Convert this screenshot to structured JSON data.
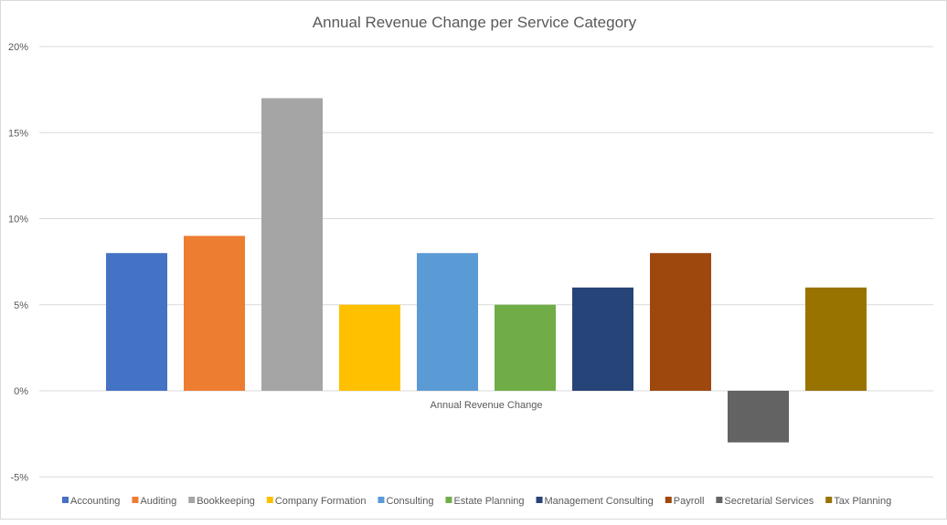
{
  "chart_data": {
    "type": "bar",
    "title": "Annual Revenue Change per Service Category",
    "xlabel": "Annual Revenue Change",
    "ylabel": "",
    "ylim": [
      -0.05,
      0.2
    ],
    "yticks": [
      -0.05,
      0,
      0.05,
      0.1,
      0.15,
      0.2
    ],
    "ytick_labels": [
      "-5%",
      "0%",
      "5%",
      "10%",
      "15%",
      "20%"
    ],
    "grid": true,
    "legend_position": "bottom",
    "series": [
      {
        "name": "Accounting",
        "value": 0.08,
        "color": "#4472C4"
      },
      {
        "name": "Auditing",
        "value": 0.09,
        "color": "#ED7D31"
      },
      {
        "name": "Bookkeeping",
        "value": 0.17,
        "color": "#A5A5A5"
      },
      {
        "name": "Company Formation",
        "value": 0.05,
        "color": "#FFC000"
      },
      {
        "name": "Consulting",
        "value": 0.08,
        "color": "#5B9BD5"
      },
      {
        "name": "Estate Planning",
        "value": 0.05,
        "color": "#70AD47"
      },
      {
        "name": "Management Consulting",
        "value": 0.06,
        "color": "#264478"
      },
      {
        "name": "Payroll",
        "value": 0.08,
        "color": "#9E480E"
      },
      {
        "name": "Secretarial Services",
        "value": -0.03,
        "color": "#636363"
      },
      {
        "name": "Tax Planning",
        "value": 0.06,
        "color": "#997300"
      }
    ]
  }
}
